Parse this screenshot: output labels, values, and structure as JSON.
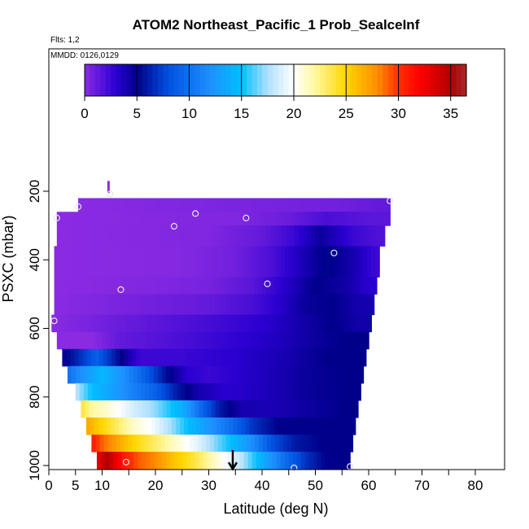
{
  "chart_data": {
    "type": "heatmap",
    "title": "ATOM2 Northeast_Pacific_1 Prob_SealceInf",
    "annotations": {
      "flights": "Flts: 1,2",
      "dates": "MMDD: 0126,0129"
    },
    "xlabel": "Latitude (deg N)",
    "ylabel": "PSXC (mbar)",
    "xlim": [
      0,
      85
    ],
    "ylim": [
      1010,
      100
    ],
    "x_ticks": [
      0,
      5,
      10,
      20,
      30,
      40,
      50,
      60,
      70,
      80
    ],
    "x_minor_ticks": [
      15,
      25,
      35,
      45,
      55,
      65,
      75
    ],
    "y_ticks": [
      200,
      400,
      600,
      800,
      1000
    ],
    "colorbar": {
      "min": 0,
      "max": 36.5,
      "ticks": [
        0,
        5,
        10,
        15,
        20,
        25,
        30,
        35
      ],
      "stops": [
        {
          "v": 0,
          "c": "#8a2be2"
        },
        {
          "v": 3,
          "c": "#2a00d0"
        },
        {
          "v": 5,
          "c": "#00008b"
        },
        {
          "v": 8,
          "c": "#0050e0"
        },
        {
          "v": 12,
          "c": "#1e90ff"
        },
        {
          "v": 15,
          "c": "#00bfff"
        },
        {
          "v": 17.5,
          "c": "#b0e0ff"
        },
        {
          "v": 20,
          "c": "#ffffff"
        },
        {
          "v": 22,
          "c": "#fff8a0"
        },
        {
          "v": 25,
          "c": "#ffd700"
        },
        {
          "v": 28,
          "c": "#ff8c00"
        },
        {
          "v": 30,
          "c": "#ff3000"
        },
        {
          "v": 32,
          "c": "#ff0000"
        },
        {
          "v": 35,
          "c": "#b20000"
        },
        {
          "v": 36.5,
          "c": "#a52a2a"
        }
      ]
    },
    "field_layers": [
      {
        "p_top": 220,
        "p_bot": 260,
        "x_start": 5.5,
        "x_end": 64,
        "cells": [
          [
            5.5,
            0
          ],
          [
            30,
            0.4
          ],
          [
            55,
            0.8
          ],
          [
            62,
            1.2
          ]
        ]
      },
      {
        "p_top": 260,
        "p_bot": 300,
        "x_start": 1.5,
        "x_end": 64,
        "cells": [
          [
            1.5,
            0
          ],
          [
            35,
            0.3
          ],
          [
            45,
            1.0
          ],
          [
            52,
            2.0
          ],
          [
            60,
            1.5
          ]
        ]
      },
      {
        "p_top": 300,
        "p_bot": 360,
        "x_start": 1.5,
        "x_end": 63,
        "cells": [
          [
            1.5,
            0
          ],
          [
            30,
            0.3
          ],
          [
            40,
            1.2
          ],
          [
            46,
            2.5
          ],
          [
            51,
            4.5
          ],
          [
            57,
            2.5
          ],
          [
            62,
            1.8
          ]
        ]
      },
      {
        "p_top": 360,
        "p_bot": 450,
        "x_start": 1.0,
        "x_end": 62,
        "cells": [
          [
            1,
            0
          ],
          [
            25,
            0.2
          ],
          [
            35,
            0.8
          ],
          [
            42,
            2.0
          ],
          [
            47,
            3.5
          ],
          [
            52,
            5.2
          ],
          [
            57,
            4.0
          ],
          [
            61,
            2.5
          ]
        ]
      },
      {
        "p_top": 450,
        "p_bot": 500,
        "x_start": 1.0,
        "x_end": 61.5,
        "cells": [
          [
            1,
            0
          ],
          [
            20,
            0.3
          ],
          [
            30,
            0.6
          ],
          [
            38,
            1.5
          ],
          [
            44,
            3.0
          ],
          [
            50,
            5.0
          ],
          [
            56,
            4.2
          ],
          [
            60,
            3.0
          ]
        ]
      },
      {
        "p_top": 500,
        "p_bot": 560,
        "x_start": 1.0,
        "x_end": 61,
        "cells": [
          [
            1,
            0
          ],
          [
            20,
            0.8
          ],
          [
            30,
            1.2
          ],
          [
            38,
            2.0
          ],
          [
            43,
            3.0
          ],
          [
            48,
            4.5
          ],
          [
            53,
            5.0
          ],
          [
            58,
            4.0
          ]
        ]
      },
      {
        "p_top": 560,
        "p_bot": 610,
        "x_start": 0.5,
        "x_end": 60.5,
        "cells": [
          [
            0.5,
            0
          ],
          [
            13,
            1.0
          ],
          [
            25,
            1.8
          ],
          [
            35,
            2.5
          ],
          [
            42,
            3.2
          ],
          [
            48,
            4.2
          ],
          [
            53,
            5.0
          ],
          [
            58,
            4.2
          ]
        ]
      },
      {
        "p_top": 610,
        "p_bot": 660,
        "x_start": 1.5,
        "x_end": 60,
        "cells": [
          [
            1.5,
            0
          ],
          [
            8,
            0.0
          ],
          [
            13,
            1.2
          ],
          [
            25,
            2.0
          ],
          [
            35,
            2.8
          ],
          [
            43,
            3.5
          ],
          [
            50,
            4.5
          ],
          [
            55,
            5.0
          ]
        ]
      },
      {
        "p_top": 660,
        "p_bot": 710,
        "x_start": 2.5,
        "x_end": 59.5,
        "cells": [
          [
            2.5,
            4.5
          ],
          [
            5.5,
            6.5
          ],
          [
            9,
            9.0
          ],
          [
            13,
            5.5
          ],
          [
            17,
            2.5
          ],
          [
            25,
            2.5
          ],
          [
            35,
            3.0
          ],
          [
            45,
            4.0
          ],
          [
            52,
            5.0
          ],
          [
            57,
            5.0
          ]
        ]
      },
      {
        "p_top": 710,
        "p_bot": 760,
        "x_start": 3.5,
        "x_end": 59,
        "cells": [
          [
            3.5,
            10
          ],
          [
            6,
            12
          ],
          [
            10,
            14.5
          ],
          [
            14,
            12
          ],
          [
            18,
            9
          ],
          [
            22,
            5.5
          ],
          [
            26,
            3
          ],
          [
            30,
            2.5
          ],
          [
            40,
            3.5
          ],
          [
            48,
            4.5
          ],
          [
            55,
            5.0
          ]
        ]
      },
      {
        "p_top": 760,
        "p_bot": 810,
        "x_start": 5,
        "x_end": 58.5,
        "cells": [
          [
            5,
            18
          ],
          [
            8,
            15
          ],
          [
            12,
            13
          ],
          [
            16,
            11
          ],
          [
            20,
            9
          ],
          [
            24,
            6
          ],
          [
            28,
            4
          ],
          [
            33,
            3
          ],
          [
            40,
            3.5
          ],
          [
            48,
            4.5
          ],
          [
            55,
            5.0
          ]
        ]
      },
      {
        "p_top": 810,
        "p_bot": 860,
        "x_start": 6,
        "x_end": 58,
        "cells": [
          [
            6,
            24
          ],
          [
            8,
            22
          ],
          [
            11,
            21
          ],
          [
            15,
            19
          ],
          [
            20,
            17
          ],
          [
            25,
            14
          ],
          [
            29,
            9
          ],
          [
            32,
            6
          ],
          [
            36,
            4
          ],
          [
            42,
            3.8
          ],
          [
            50,
            4.5
          ],
          [
            55,
            5.0
          ]
        ]
      },
      {
        "p_top": 860,
        "p_bot": 910,
        "x_start": 7,
        "x_end": 57.5,
        "cells": [
          [
            7,
            27
          ],
          [
            10,
            25
          ],
          [
            13,
            23
          ],
          [
            16,
            21
          ],
          [
            19,
            20
          ],
          [
            22,
            18
          ],
          [
            26,
            15
          ],
          [
            30,
            12.5
          ],
          [
            34,
            10
          ],
          [
            38,
            7
          ],
          [
            43,
            5
          ],
          [
            50,
            5.0
          ],
          [
            55,
            5.0
          ]
        ]
      },
      {
        "p_top": 910,
        "p_bot": 960,
        "x_start": 8,
        "x_end": 57,
        "cells": [
          [
            8,
            31
          ],
          [
            10,
            29
          ],
          [
            13,
            27
          ],
          [
            16,
            25
          ],
          [
            20,
            23
          ],
          [
            24,
            21
          ],
          [
            28,
            19
          ],
          [
            31,
            17
          ],
          [
            34,
            15
          ],
          [
            38,
            12
          ],
          [
            42,
            8
          ],
          [
            46,
            6
          ],
          [
            51,
            5.0
          ]
        ]
      },
      {
        "p_top": 960,
        "p_bot": 1010,
        "x_start": 9,
        "x_end": 56.5,
        "cells": [
          [
            9,
            33
          ],
          [
            11,
            35
          ],
          [
            14,
            31
          ],
          [
            17,
            29
          ],
          [
            20,
            28
          ],
          [
            23,
            26
          ],
          [
            27,
            24
          ],
          [
            30,
            22
          ],
          [
            33,
            20
          ],
          [
            36,
            18
          ],
          [
            40,
            14
          ],
          [
            44,
            10
          ],
          [
            48,
            7
          ],
          [
            52,
            5.0
          ]
        ]
      }
    ],
    "spike": {
      "x": 11.2,
      "p_top": 170,
      "p_bot": 205
    },
    "flight_points": [
      {
        "x": 11.5,
        "p": 208
      },
      {
        "x": 5.5,
        "p": 245
      },
      {
        "x": 1.5,
        "p": 278
      },
      {
        "x": 27.5,
        "p": 265
      },
      {
        "x": 23.5,
        "p": 302
      },
      {
        "x": 37,
        "p": 278
      },
      {
        "x": 64,
        "p": 228
      },
      {
        "x": 53.5,
        "p": 380
      },
      {
        "x": 41,
        "p": 470
      },
      {
        "x": 13.5,
        "p": 487
      },
      {
        "x": 1,
        "p": 578
      },
      {
        "x": 14.5,
        "p": 990
      },
      {
        "x": 46,
        "p": 1007
      },
      {
        "x": 56.5,
        "p": 1003
      }
    ],
    "arrow": {
      "x": 34.5,
      "p_top": 955,
      "p_bot": 1010
    }
  }
}
